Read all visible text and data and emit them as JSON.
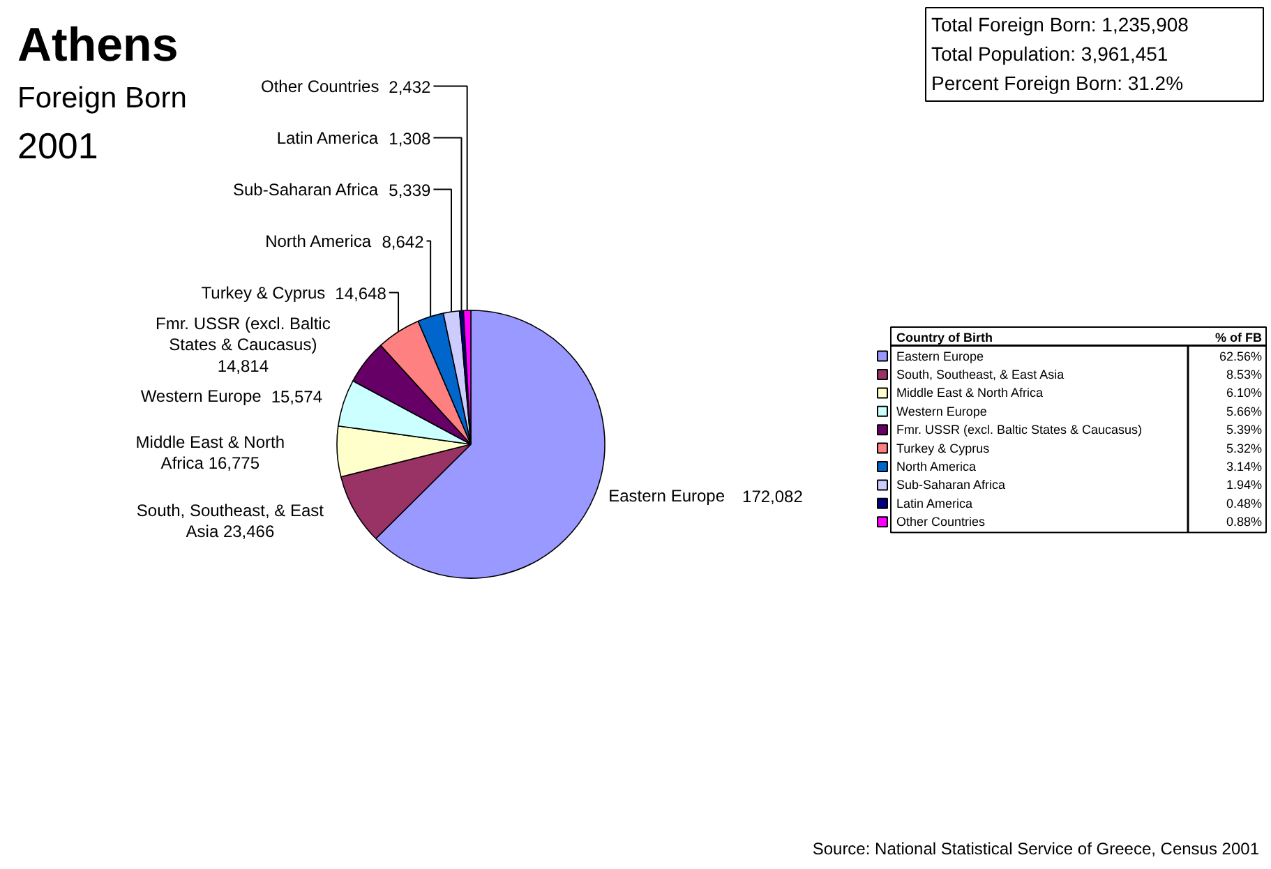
{
  "chart_data": [
    {
      "type": "pie",
      "title": "Athens",
      "subtitle": "Foreign Born",
      "annotations": [
        "2001",
        "Total Foreign Born:   1,235,908",
        "Total Population:   3,961,451",
        "Percent Foreign Born:   31.2%",
        "Source: National Statistical Service of Greece, Census 2001"
      ],
      "categories": [
        "Eastern Europe",
        "South, Southeast, & East Asia",
        "Middle East & North Africa",
        "Western Europe",
        "Fmr. USSR (excl. Baltic States & Caucasus)",
        "Turkey & Cyprus",
        "North America",
        "Sub-Saharan Africa",
        "Latin America",
        "Other Countries"
      ],
      "values": [
        172082,
        23466,
        16775,
        15574,
        14814,
        14648,
        8642,
        5339,
        1308,
        2432
      ],
      "value_labels": [
        "172,082",
        "23,466",
        "16,775",
        "15,574",
        "14,814",
        "14,648",
        "8,642",
        "5,339",
        "1,308",
        "2,432"
      ],
      "colors": [
        "#9999ff",
        "#993366",
        "#ffffcc",
        "#ccffff",
        "#660066",
        "#ff8080",
        "#0066cc",
        "#ccccff",
        "#000080",
        "#ff00ff"
      ],
      "legend": "right",
      "legend_title": "Country of Birth"
    },
    {
      "type": "other",
      "title": "% of FB",
      "annotations": [
        "62.56%",
        "8.53%",
        "6.10%",
        "5.66%",
        "5.39%",
        "5.32%",
        "3.14%",
        "1.94%",
        "0.48%",
        "0.88%"
      ]
    }
  ]
}
